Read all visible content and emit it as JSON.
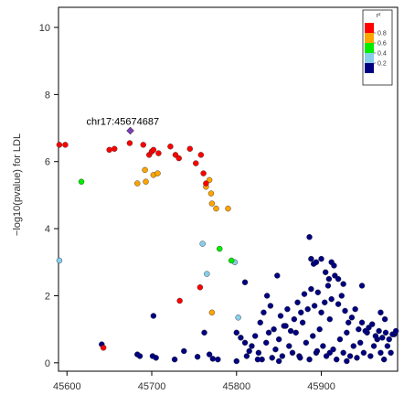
{
  "chart_data": {
    "type": "scatter",
    "xlabel": "",
    "ylabel": "−log10(pvalue) for LDL",
    "xlim": [
      45590,
      45990
    ],
    "ylim": [
      -0.25,
      10.6
    ],
    "x_ticks": [
      "45600",
      "45700",
      "45800",
      "45900"
    ],
    "y_ticks": [
      "0",
      "2",
      "4",
      "6",
      "8",
      "10"
    ],
    "grid": false,
    "legend_position": "top-right",
    "legend": {
      "title": "r²",
      "labels": [
        "0.8",
        "0.6",
        "0.4",
        "0.2"
      ],
      "colors": [
        "#ff0000",
        "#ffa500",
        "#00ee00",
        "#87ceeb",
        "#000080"
      ]
    },
    "annotation": {
      "text": "chr17:45674687",
      "x": 45674.7,
      "y": 7.2
    },
    "lead_snp": {
      "x": 45674.7,
      "y": 6.92,
      "color": "#7b3fb5"
    },
    "series": [
      {
        "bin": "0.8-1.0",
        "color": "#ff0000",
        "points": [
          [
            45591,
            6.5
          ],
          [
            45598,
            6.5
          ],
          [
            45650,
            6.35
          ],
          [
            45656,
            6.38
          ],
          [
            45674,
            6.55
          ],
          [
            45690,
            6.5
          ],
          [
            45697,
            6.2
          ],
          [
            45700,
            6.3
          ],
          [
            45702,
            6.35
          ],
          [
            45708,
            6.25
          ],
          [
            45722,
            6.45
          ],
          [
            45728,
            6.2
          ],
          [
            45732,
            6.1
          ],
          [
            45745,
            6.38
          ],
          [
            45752,
            5.95
          ],
          [
            45758,
            6.2
          ],
          [
            45761,
            5.65
          ],
          [
            45764,
            5.35
          ],
          [
            45643,
            0.45
          ],
          [
            45733,
            1.85
          ],
          [
            45757,
            2.25
          ]
        ]
      },
      {
        "bin": "0.6-0.8",
        "color": "#ffa500",
        "points": [
          [
            45683,
            5.35
          ],
          [
            45692,
            5.75
          ],
          [
            45693,
            5.4
          ],
          [
            45702,
            5.6
          ],
          [
            45707,
            5.65
          ],
          [
            45764,
            5.25
          ],
          [
            45768,
            5.45
          ],
          [
            45770,
            5.05
          ],
          [
            45771,
            4.75
          ],
          [
            45776,
            4.6
          ],
          [
            45790,
            4.6
          ],
          [
            45771,
            1.5
          ]
        ]
      },
      {
        "bin": "0.4-0.6",
        "color": "#00ee00",
        "points": [
          [
            45617,
            5.4
          ],
          [
            45780,
            3.4
          ],
          [
            45794,
            3.05
          ]
        ]
      },
      {
        "bin": "0.2-0.4",
        "color": "#87ceeb",
        "points": [
          [
            45591,
            3.05
          ],
          [
            45760,
            3.55
          ],
          [
            45765,
            2.65
          ],
          [
            45798,
            3.0
          ],
          [
            45802,
            1.35
          ]
        ]
      },
      {
        "bin": "0.0-0.2",
        "color": "#000080",
        "points": [
          [
            45641,
            0.55
          ],
          [
            45683,
            0.25
          ],
          [
            45686,
            0.2
          ],
          [
            45701,
            0.2
          ],
          [
            45705,
            0.15
          ],
          [
            45702,
            1.4
          ],
          [
            45727,
            0.1
          ],
          [
            45738,
            0.35
          ],
          [
            45754,
            0.18
          ],
          [
            45762,
            0.9
          ],
          [
            45768,
            0.25
          ],
          [
            45772,
            0.12
          ],
          [
            45778,
            0.1
          ],
          [
            45800,
            0.05
          ],
          [
            45815,
            0.35
          ],
          [
            45810,
            2.4
          ],
          [
            45848,
            2.6
          ],
          [
            45886,
            3.75
          ],
          [
            45800,
            0.9
          ],
          [
            45805,
            0.75
          ],
          [
            45810,
            0.6
          ],
          [
            45812,
            0.2
          ],
          [
            45818,
            0.5
          ],
          [
            45822,
            0.8
          ],
          [
            45826,
            0.3
          ],
          [
            45830,
            0.1
          ],
          [
            45835,
            0.6
          ],
          [
            45838,
            0.9
          ],
          [
            45842,
            0.15
          ],
          [
            45846,
            0.4
          ],
          [
            45850,
            0.7
          ],
          [
            45854,
            0.2
          ],
          [
            45858,
            1.1
          ],
          [
            45862,
            0.5
          ],
          [
            45866,
            0.3
          ],
          [
            45870,
            0.9
          ],
          [
            45874,
            0.2
          ],
          [
            45878,
            1.2
          ],
          [
            45882,
            0.6
          ],
          [
            45886,
            0.1
          ],
          [
            45890,
            0.8
          ],
          [
            45894,
            0.3
          ],
          [
            45898,
            1.0
          ],
          [
            45902,
            0.5
          ],
          [
            45906,
            0.2
          ],
          [
            45910,
            1.3
          ],
          [
            45914,
            0.4
          ],
          [
            45918,
            0.1
          ],
          [
            45922,
            0.7
          ],
          [
            45926,
            0.3
          ],
          [
            45930,
            0.9
          ],
          [
            45934,
            0.2
          ],
          [
            45938,
            0.5
          ],
          [
            45942,
            0.15
          ],
          [
            45946,
            0.6
          ],
          [
            45950,
            0.3
          ],
          [
            45954,
            0.9
          ],
          [
            45958,
            0.2
          ],
          [
            45962,
            0.5
          ],
          [
            45966,
            0.7
          ],
          [
            45970,
            0.3
          ],
          [
            45974,
            0.1
          ],
          [
            45978,
            0.5
          ],
          [
            45982,
            0.3
          ],
          [
            45986,
            0.85
          ],
          [
            45828,
            1.2
          ],
          [
            45832,
            1.5
          ],
          [
            45836,
            2.0
          ],
          [
            45840,
            1.7
          ],
          [
            45844,
            1.0
          ],
          [
            45852,
            1.4
          ],
          [
            45856,
            1.1
          ],
          [
            45860,
            1.6
          ],
          [
            45864,
            0.95
          ],
          [
            45868,
            1.3
          ],
          [
            45872,
            1.8
          ],
          [
            45876,
            1.5
          ],
          [
            45880,
            2.05
          ],
          [
            45884,
            1.6
          ],
          [
            45888,
            2.2
          ],
          [
            45892,
            1.7
          ],
          [
            45896,
            2.1
          ],
          [
            45900,
            1.5
          ],
          [
            45904,
            1.8
          ],
          [
            45908,
            2.3
          ],
          [
            45912,
            1.9
          ],
          [
            45916,
            2.6
          ],
          [
            45920,
            1.75
          ],
          [
            45924,
            2.0
          ],
          [
            45928,
            1.55
          ],
          [
            45932,
            1.2
          ],
          [
            45936,
            1.35
          ],
          [
            45940,
            1.6
          ],
          [
            45944,
            1.0
          ],
          [
            45948,
            1.2
          ],
          [
            45952,
            0.95
          ],
          [
            45956,
            1.05
          ],
          [
            45960,
            1.15
          ],
          [
            45964,
            0.8
          ],
          [
            45968,
            0.95
          ],
          [
            45972,
            0.75
          ],
          [
            45976,
            0.9
          ],
          [
            45980,
            0.7
          ],
          [
            45984,
            0.85
          ],
          [
            45988,
            0.95
          ],
          [
            45888,
            3.1
          ],
          [
            45891,
            2.95
          ],
          [
            45894,
            3.0
          ],
          [
            45900,
            3.1
          ],
          [
            45905,
            2.7
          ],
          [
            45909,
            2.5
          ],
          [
            45912,
            3.0
          ],
          [
            45915,
            2.9
          ],
          [
            45920,
            2.5
          ],
          [
            45926,
            2.35
          ],
          [
            45948,
            2.3
          ],
          [
            45970,
            1.5
          ],
          [
            45975,
            1.3
          ],
          [
            45825,
            0.1
          ],
          [
            45850,
            0.05
          ],
          [
            45875,
            0.15
          ],
          [
            45895,
            0.35
          ],
          [
            45910,
            0.3
          ],
          [
            45930,
            0.05
          ]
        ]
      }
    ]
  }
}
